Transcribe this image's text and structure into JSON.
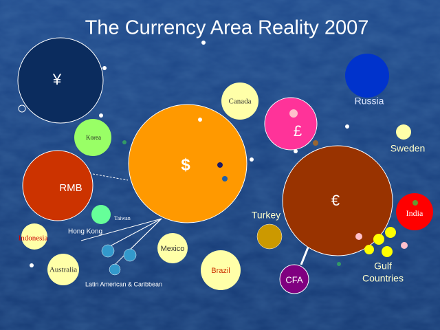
{
  "title": "The Currency Area Reality 2007",
  "nodes": [
    {
      "label": "¥"
    },
    {
      "label": "Canada"
    },
    {
      "label": "Russia"
    },
    {
      "label": "Korea"
    },
    {
      "label": "£"
    },
    {
      "label": "Sweden"
    },
    {
      "label": "$"
    },
    {
      "label": "RMB"
    },
    {
      "label": "€"
    },
    {
      "label": "Turkey"
    },
    {
      "label": "India"
    },
    {
      "label": "Taiwan"
    },
    {
      "label": "Hong Kong"
    },
    {
      "label": "Indonesia"
    },
    {
      "label": "Mexico"
    },
    {
      "label": "Australia"
    },
    {
      "label": "Brazil"
    },
    {
      "label": "CFA"
    },
    {
      "lines": [
        "Gulf",
        "Countries"
      ]
    },
    {
      "label": "Latin American & Caribbean"
    }
  ]
}
